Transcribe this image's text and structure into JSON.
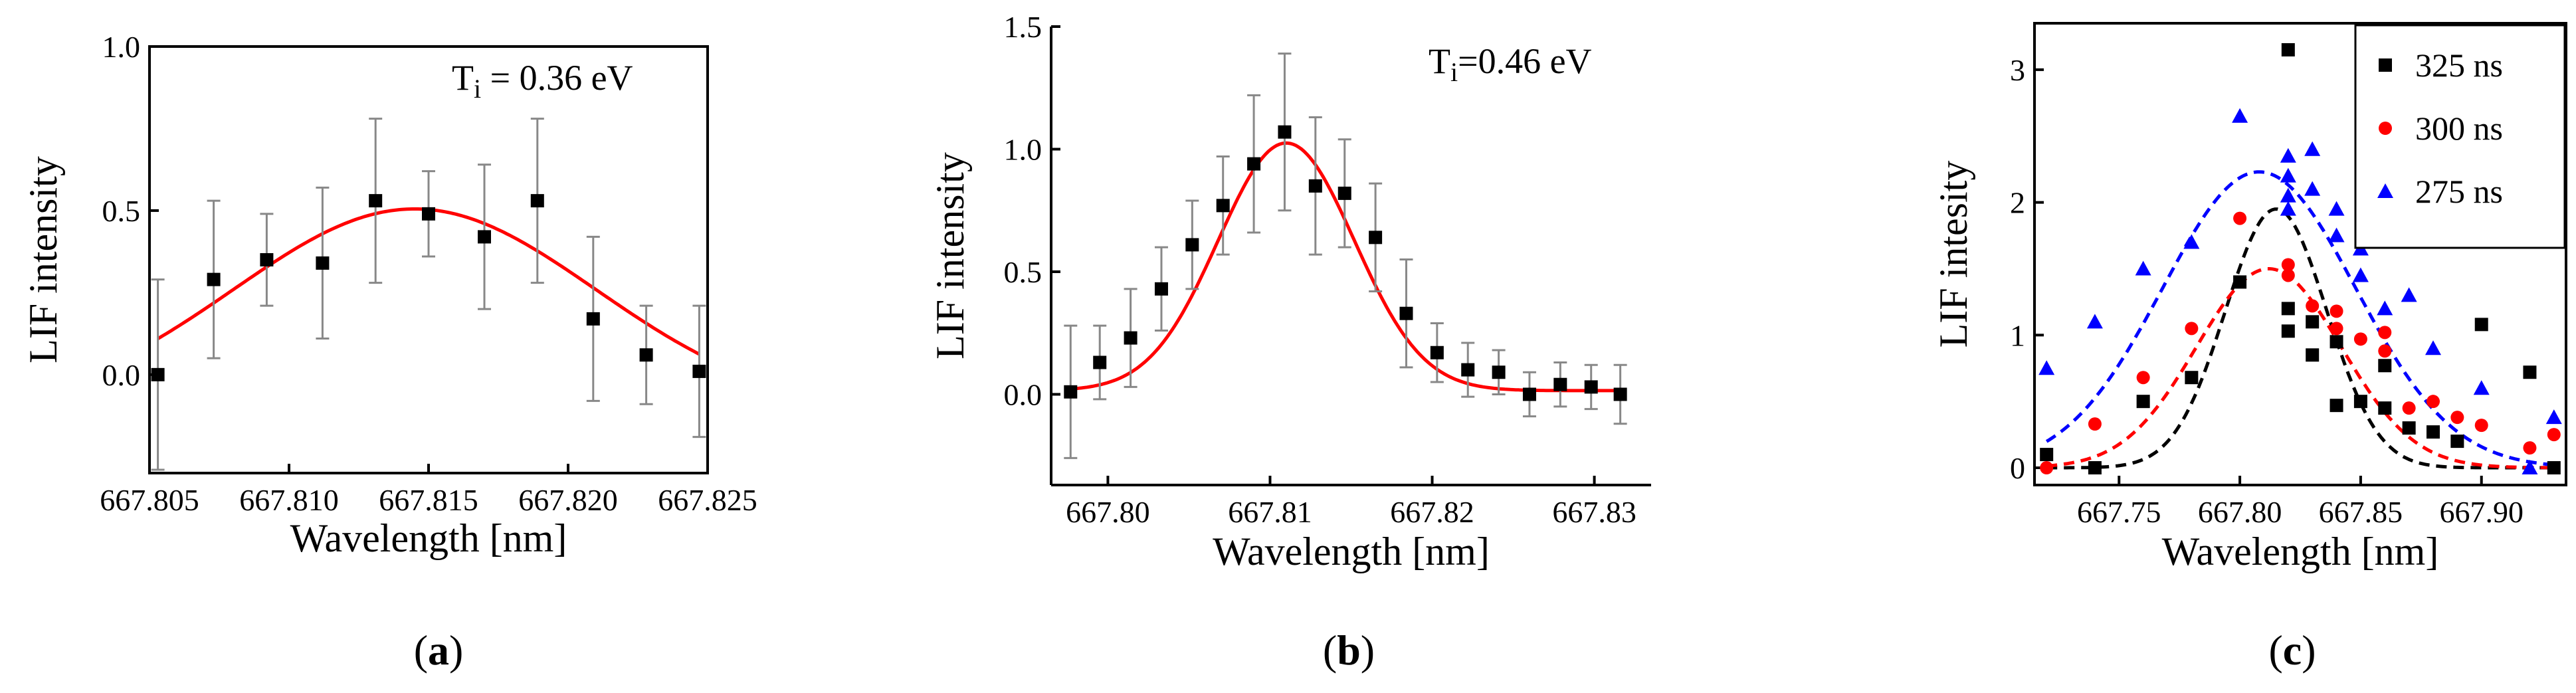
{
  "chart_data": [
    {
      "type": "scatter",
      "panel_label": "a",
      "xlabel": "Wavelength [nm]",
      "ylabel": "LIF intensity",
      "annotation": "Ti = 0.36 eV",
      "annotation_main": "T",
      "annotation_sub": "i",
      "annotation_rest": " = 0.36 eV",
      "xlim": [
        667.805,
        667.825
      ],
      "ylim": [
        -0.3,
        1.0
      ],
      "xticks": [
        667.805,
        667.81,
        667.815,
        667.82,
        667.825
      ],
      "xtick_labels": [
        "667.805",
        "667.810",
        "667.815",
        "667.820",
        "667.825"
      ],
      "yticks": [
        0.0,
        0.5,
        1.0
      ],
      "ytick_labels": [
        "0.0",
        "0.5",
        "1.0"
      ],
      "series": [
        {
          "name": "data",
          "marker": "square",
          "color": "#000000",
          "x": [
            667.8053,
            667.8073,
            667.8092,
            667.8112,
            667.8131,
            667.815,
            667.817,
            667.8189,
            667.8209,
            667.8228,
            667.8247
          ],
          "y": [
            0.0,
            0.29,
            0.35,
            0.34,
            0.53,
            0.49,
            0.42,
            0.53,
            0.17,
            0.06,
            0.01
          ],
          "yerr": [
            0.29,
            0.24,
            0.14,
            0.23,
            0.25,
            0.13,
            0.22,
            0.25,
            0.25,
            0.15,
            0.2
          ]
        },
        {
          "name": "fit",
          "type": "gaussian",
          "color": "#ff0000",
          "x_range": [
            667.8053,
            667.8247
          ],
          "amplitude": 0.625,
          "center": 667.8145,
          "sigma": 0.0065,
          "offset": -0.12
        }
      ]
    },
    {
      "type": "scatter",
      "panel_label": "b",
      "xlabel": "Wavelength [nm]",
      "ylabel": "LIF intensity",
      "annotation": "Ti=0.46 eV",
      "annotation_main": "T",
      "annotation_sub": "i",
      "annotation_rest": "=0.46 eV",
      "xlim": [
        667.7965,
        667.8335
      ],
      "ylim": [
        -0.37,
        1.5
      ],
      "xticks": [
        667.8,
        667.81,
        667.82,
        667.83
      ],
      "xtick_labels": [
        "667.80",
        "667.81",
        "667.82",
        "667.83"
      ],
      "yticks": [
        0.0,
        0.5,
        1.0,
        1.5
      ],
      "ytick_labels": [
        "0.0",
        "0.5",
        "1.0",
        "1.5"
      ],
      "series": [
        {
          "name": "data",
          "marker": "square",
          "color": "#000000",
          "x": [
            667.7977,
            667.7995,
            667.8014,
            667.8033,
            667.8052,
            667.8071,
            667.809,
            667.8109,
            667.8128,
            667.8146,
            667.8165,
            667.8184,
            667.8203,
            667.8222,
            667.8241,
            667.826,
            667.8279,
            667.8298,
            667.8316
          ],
          "y": [
            0.01,
            0.13,
            0.23,
            0.43,
            0.61,
            0.77,
            0.94,
            1.07,
            0.85,
            0.82,
            0.64,
            0.33,
            0.17,
            0.1,
            0.09,
            0.0,
            0.04,
            0.03,
            0.0
          ],
          "yerr": [
            0.27,
            0.15,
            0.2,
            0.17,
            0.18,
            0.2,
            0.28,
            0.32,
            0.28,
            0.22,
            0.22,
            0.22,
            0.12,
            0.11,
            0.09,
            0.09,
            0.09,
            0.09,
            0.12
          ]
        },
        {
          "name": "fit",
          "type": "gaussian",
          "color": "#ff0000",
          "x_range": [
            667.7977,
            667.8316
          ],
          "amplitude": 1.01,
          "center": 667.811,
          "sigma": 0.0042,
          "offset": 0.015
        }
      ]
    },
    {
      "type": "scatter",
      "panel_label": "c",
      "xlabel": "Wavelength [nm]",
      "ylabel": "LIF intesity",
      "xlim": [
        667.715,
        667.935
      ],
      "ylim": [
        -0.13,
        3.35
      ],
      "xticks": [
        667.75,
        667.8,
        667.85,
        667.9
      ],
      "xtick_labels": [
        "667.75",
        "667.80",
        "667.85",
        "667.90"
      ],
      "yticks": [
        0,
        1,
        2,
        3
      ],
      "ytick_labels": [
        "0",
        "1",
        "2",
        "3"
      ],
      "legend_position": "top-right",
      "series": [
        {
          "name": "325 ns",
          "marker": "square",
          "color": "#000000",
          "x": [
            667.72,
            667.74,
            667.76,
            667.78,
            667.8,
            667.82,
            667.82,
            667.82,
            667.83,
            667.83,
            667.84,
            667.84,
            667.85,
            667.86,
            667.86,
            667.87,
            667.88,
            667.89,
            667.9,
            667.92,
            667.93
          ],
          "y": [
            0.1,
            0.0,
            0.5,
            0.68,
            1.4,
            3.15,
            1.2,
            1.03,
            0.85,
            1.1,
            0.47,
            0.95,
            0.5,
            0.45,
            0.77,
            0.3,
            0.27,
            0.2,
            1.08,
            0.72,
            0.0
          ],
          "fit": {
            "amplitude": 1.95,
            "center": 667.815,
            "sigma": 0.021,
            "offset": 0.0,
            "x_range": [
              667.72,
              667.93
            ]
          }
        },
        {
          "name": "300 ns",
          "marker": "circle",
          "color": "#ff0000",
          "x": [
            667.72,
            667.74,
            667.76,
            667.78,
            667.8,
            667.82,
            667.82,
            667.83,
            667.84,
            667.84,
            667.85,
            667.86,
            667.86,
            667.87,
            667.88,
            667.89,
            667.9,
            667.92,
            667.93
          ],
          "y": [
            0.0,
            0.33,
            0.68,
            1.05,
            1.88,
            1.53,
            1.45,
            1.22,
            1.18,
            1.05,
            0.97,
            1.02,
            0.88,
            0.45,
            0.5,
            0.38,
            0.32,
            0.15,
            0.25
          ],
          "fit": {
            "amplitude": 1.5,
            "center": 667.812,
            "sigma": 0.03,
            "offset": 0.0,
            "x_range": [
              667.72,
              667.93
            ]
          }
        },
        {
          "name": "275 ns",
          "marker": "triangle",
          "color": "#0000ff",
          "x": [
            667.72,
            667.74,
            667.76,
            667.78,
            667.8,
            667.82,
            667.82,
            667.82,
            667.82,
            667.83,
            667.83,
            667.84,
            667.84,
            667.85,
            667.85,
            667.86,
            667.87,
            667.88,
            667.9,
            667.92,
            667.93
          ],
          "y": [
            0.75,
            1.1,
            1.5,
            1.7,
            2.65,
            2.35,
            2.2,
            2.05,
            1.95,
            2.4,
            2.1,
            1.95,
            1.75,
            1.65,
            1.45,
            1.2,
            1.3,
            0.9,
            0.6,
            0.0,
            0.38
          ],
          "fit": {
            "amplitude": 2.23,
            "center": 667.808,
            "sigma": 0.04,
            "offset": 0.0,
            "x_range": [
              667.72,
              667.93
            ]
          }
        }
      ]
    }
  ]
}
